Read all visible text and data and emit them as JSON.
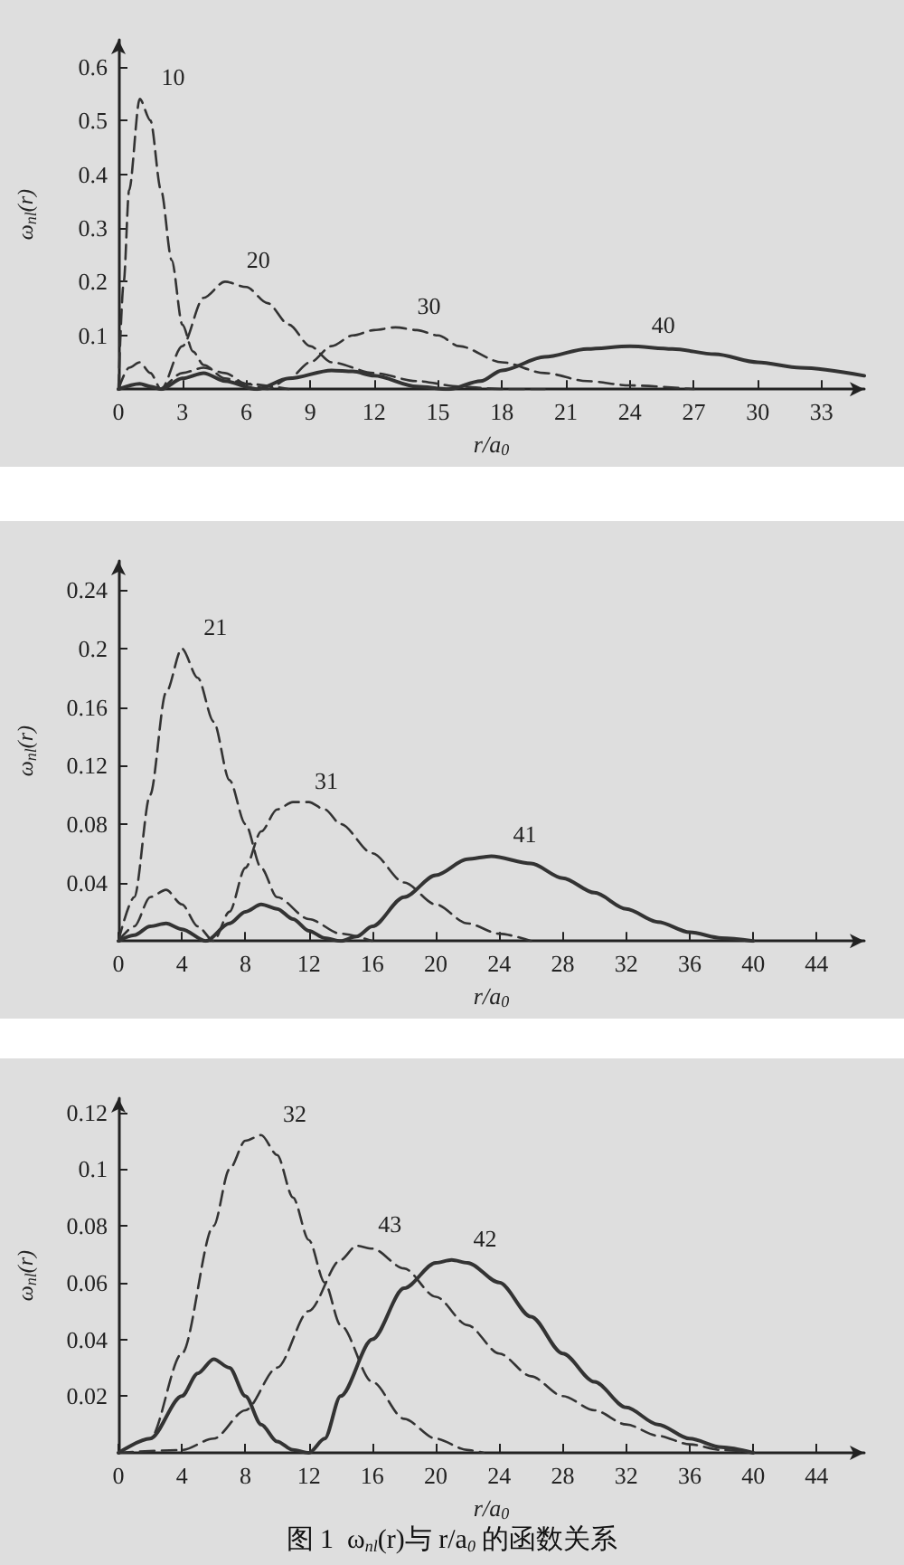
{
  "chart_data": [
    {
      "type": "line",
      "xlabel": "r/a$_{0}$",
      "ylabel": "ω$_{nl}$(r)",
      "xlim": [
        0,
        35
      ],
      "xticks": [
        0,
        3,
        6,
        9,
        12,
        15,
        18,
        21,
        24,
        27,
        30,
        33
      ],
      "ylim": [
        0,
        0.65
      ],
      "yticks": [
        0.1,
        0.2,
        0.3,
        0.4,
        0.5,
        0.6
      ],
      "grid": false,
      "marker": "none",
      "series": [
        {
          "name": "10",
          "color": "#333333",
          "line_style": "dashed",
          "x": [
            0,
            0.25,
            0.5,
            1,
            1.5,
            2,
            2.5,
            3,
            3.5,
            4,
            5,
            6,
            8
          ],
          "values": [
            0,
            0.2,
            0.37,
            0.54,
            0.5,
            0.37,
            0.24,
            0.12,
            0.07,
            0.045,
            0.02,
            0.01,
            0
          ]
        },
        {
          "name": "20",
          "color": "#333333",
          "line_style": "dashed",
          "x": [
            0,
            0.5,
            1,
            1.5,
            2,
            3,
            4,
            5,
            6,
            7,
            8,
            9,
            10,
            12,
            14,
            16,
            18,
            20
          ],
          "values": [
            0,
            0.04,
            0.05,
            0.03,
            0,
            0.08,
            0.17,
            0.2,
            0.19,
            0.16,
            0.12,
            0.08,
            0.05,
            0.03,
            0.015,
            0.005,
            0,
            0
          ]
        },
        {
          "name": "30",
          "color": "#333333",
          "line_style": "dashed",
          "x": [
            0,
            1,
            1.9,
            3,
            4,
            5,
            6,
            7,
            8,
            9,
            10,
            11,
            12,
            13,
            14,
            15,
            16,
            18,
            20,
            22,
            24,
            27
          ],
          "values": [
            0,
            0.01,
            0,
            0.03,
            0.04,
            0.03,
            0.01,
            0,
            0.02,
            0.05,
            0.08,
            0.1,
            0.11,
            0.115,
            0.11,
            0.1,
            0.08,
            0.05,
            0.03,
            0.015,
            0.007,
            0
          ]
        },
        {
          "name": "40",
          "color": "#333333",
          "line_style": "solid",
          "x": [
            0,
            1,
            1.5,
            2,
            3,
            4,
            5,
            6.5,
            8,
            10,
            11,
            12,
            14,
            15.5,
            17,
            18,
            20,
            22,
            24,
            26,
            28,
            30,
            32,
            35
          ],
          "values": [
            0,
            0.01,
            0.005,
            0,
            0.02,
            0.03,
            0.015,
            0,
            0.02,
            0.035,
            0.033,
            0.025,
            0.005,
            0,
            0.015,
            0.035,
            0.06,
            0.075,
            0.08,
            0.075,
            0.065,
            0.05,
            0.04,
            0.025
          ]
        }
      ]
    },
    {
      "type": "line",
      "xlabel": "r/a$_{0}$",
      "ylabel": "ω$_{nl}$(r)",
      "xlim": [
        0,
        47
      ],
      "xticks": [
        0,
        4,
        8,
        12,
        16,
        20,
        24,
        28,
        32,
        36,
        40,
        44
      ],
      "ylim": [
        0,
        0.26
      ],
      "yticks": [
        0.04,
        0.08,
        0.12,
        0.16,
        0.2,
        0.24
      ],
      "grid": false,
      "marker": "none",
      "series": [
        {
          "name": "21",
          "color": "#333333",
          "line_style": "dashed",
          "x": [
            0,
            1,
            2,
            3,
            4,
            5,
            6,
            7,
            8,
            9,
            10,
            12,
            14,
            16
          ],
          "values": [
            0,
            0.03,
            0.1,
            0.17,
            0.2,
            0.18,
            0.15,
            0.11,
            0.08,
            0.05,
            0.03,
            0.015,
            0.005,
            0
          ]
        },
        {
          "name": "31",
          "color": "#333333",
          "line_style": "dashed",
          "x": [
            0,
            1,
            2,
            3,
            4,
            5,
            6,
            7,
            8,
            9,
            10,
            11,
            12,
            13,
            14,
            16,
            18,
            20,
            22,
            24,
            26
          ],
          "values": [
            0,
            0.01,
            0.03,
            0.035,
            0.025,
            0.01,
            0,
            0.02,
            0.05,
            0.075,
            0.09,
            0.095,
            0.095,
            0.09,
            0.08,
            0.06,
            0.04,
            0.025,
            0.012,
            0.005,
            0
          ]
        },
        {
          "name": "41",
          "color": "#333333",
          "line_style": "solid",
          "x": [
            0,
            1,
            2,
            3,
            4,
            5.5,
            7,
            8,
            9,
            10,
            11,
            12,
            13,
            14,
            15,
            16,
            18,
            20,
            22,
            23.5,
            26,
            28,
            30,
            32,
            34,
            36,
            38,
            40
          ],
          "values": [
            0,
            0.004,
            0.01,
            0.012,
            0.008,
            0,
            0.012,
            0.02,
            0.025,
            0.022,
            0.015,
            0.007,
            0.002,
            0,
            0.003,
            0.01,
            0.03,
            0.045,
            0.056,
            0.058,
            0.053,
            0.043,
            0.033,
            0.022,
            0.013,
            0.006,
            0.002,
            0
          ]
        }
      ]
    },
    {
      "type": "line",
      "xlabel": "r/a$_{0}$",
      "ylabel": "ω$_{nl}$(r)",
      "xlim": [
        0,
        47
      ],
      "xticks": [
        0,
        4,
        8,
        12,
        16,
        20,
        24,
        28,
        32,
        36,
        40,
        44
      ],
      "ylim": [
        0,
        0.125
      ],
      "yticks": [
        0.02,
        0.04,
        0.06,
        0.08,
        0.1,
        0.12
      ],
      "grid": false,
      "marker": "none",
      "annotations": [
        "图 1  ω$_{nl}$(r)与 r/a$_{0}$ 的函数关系"
      ],
      "series": [
        {
          "name": "32",
          "color": "#333333",
          "line_style": "dashed",
          "x": [
            0,
            2,
            4,
            6,
            7,
            8,
            9,
            10,
            11,
            12,
            13,
            14,
            16,
            18,
            20,
            22,
            23
          ],
          "values": [
            0,
            0.005,
            0.035,
            0.08,
            0.1,
            0.11,
            0.112,
            0.105,
            0.09,
            0.075,
            0.06,
            0.045,
            0.025,
            0.012,
            0.005,
            0.001,
            0
          ]
        },
        {
          "name": "43",
          "color": "#333333",
          "line_style": "dashed",
          "x": [
            0,
            4,
            6,
            8,
            10,
            12,
            14,
            15,
            16,
            18,
            20,
            22,
            24,
            26,
            28,
            30,
            32,
            34,
            36,
            38,
            40
          ],
          "values": [
            0,
            0.001,
            0.005,
            0.015,
            0.03,
            0.05,
            0.068,
            0.073,
            0.072,
            0.065,
            0.055,
            0.045,
            0.035,
            0.027,
            0.02,
            0.015,
            0.01,
            0.006,
            0.003,
            0.001,
            0
          ]
        },
        {
          "name": "42",
          "color": "#333333",
          "line_style": "solid",
          "x": [
            0,
            2,
            4,
            5,
            6,
            7,
            8,
            9,
            10,
            11,
            12,
            13,
            14,
            16,
            18,
            20,
            21,
            22,
            24,
            26,
            28,
            30,
            32,
            34,
            36,
            38,
            40
          ],
          "values": [
            0,
            0.005,
            0.02,
            0.028,
            0.033,
            0.03,
            0.02,
            0.01,
            0.004,
            0.001,
            0,
            0.005,
            0.02,
            0.04,
            0.058,
            0.067,
            0.068,
            0.067,
            0.06,
            0.048,
            0.035,
            0.025,
            0.016,
            0.01,
            0.005,
            0.002,
            0
          ]
        }
      ]
    }
  ]
}
